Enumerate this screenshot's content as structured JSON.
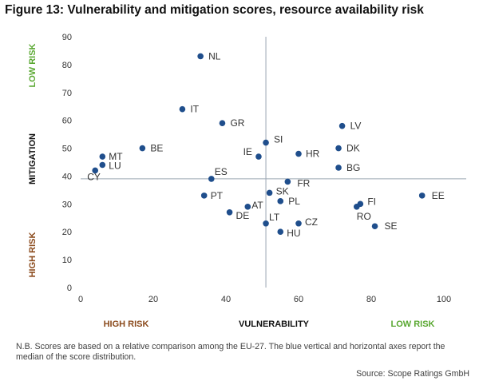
{
  "figure": {
    "title": "Figure 13: Vulnerability and mitigation scores, resource availability risk",
    "note": "N.B. Scores are based on a relative comparison among the EU-27. The blue vertical and horizontal axes report the median of the score distribution.",
    "source": "Source: Scope Ratings GmbH"
  },
  "chart_data": {
    "type": "scatter",
    "title": "Figure 13: Vulnerability and mitigation scores, resource availability risk",
    "xlabel": "VULNERABILITY",
    "ylabel": "MITIGATION",
    "xlim": [
      0,
      100
    ],
    "ylim": [
      0,
      90
    ],
    "x_ticks": [
      0,
      20,
      40,
      60,
      80,
      100
    ],
    "y_ticks": [
      0,
      10,
      20,
      30,
      40,
      50,
      60,
      70,
      80,
      90
    ],
    "median_x": 51,
    "median_y": 39,
    "x_annotations": {
      "left": "HIGH RISK",
      "right": "LOW RISK"
    },
    "y_annotations": {
      "top": "LOW RISK",
      "bottom": "HIGH RISK"
    },
    "colors": {
      "point": "#1f4e8c",
      "median_line": "#9aa6b2",
      "low_risk": "#5aa832",
      "high_risk": "#8b4a1c",
      "text": "#333333"
    },
    "points": [
      {
        "label": "NL",
        "x": 33,
        "y": 83
      },
      {
        "label": "IT",
        "x": 28,
        "y": 64
      },
      {
        "label": "GR",
        "x": 39,
        "y": 59
      },
      {
        "label": "LV",
        "x": 72,
        "y": 58
      },
      {
        "label": "SI",
        "x": 51,
        "y": 52
      },
      {
        "label": "DK",
        "x": 71,
        "y": 50
      },
      {
        "label": "BE",
        "x": 17,
        "y": 50
      },
      {
        "label": "HR",
        "x": 60,
        "y": 48
      },
      {
        "label": "MT",
        "x": 6,
        "y": 47
      },
      {
        "label": "IE",
        "x": 49,
        "y": 47
      },
      {
        "label": "LU",
        "x": 6,
        "y": 44
      },
      {
        "label": "BG",
        "x": 71,
        "y": 43
      },
      {
        "label": "CY",
        "x": 4,
        "y": 42
      },
      {
        "label": "ES",
        "x": 36,
        "y": 39
      },
      {
        "label": "FR",
        "x": 57,
        "y": 38
      },
      {
        "label": "SK",
        "x": 52,
        "y": 34
      },
      {
        "label": "PT",
        "x": 34,
        "y": 33
      },
      {
        "label": "EE",
        "x": 94,
        "y": 33
      },
      {
        "label": "PL",
        "x": 55,
        "y": 31
      },
      {
        "label": "FI",
        "x": 77,
        "y": 30
      },
      {
        "label": "AT",
        "x": 46,
        "y": 29
      },
      {
        "label": "RO",
        "x": 76,
        "y": 29
      },
      {
        "label": "DE",
        "x": 41,
        "y": 27
      },
      {
        "label": "LT",
        "x": 51,
        "y": 23
      },
      {
        "label": "CZ",
        "x": 60,
        "y": 23
      },
      {
        "label": "SE",
        "x": 81,
        "y": 22
      },
      {
        "label": "HU",
        "x": 55,
        "y": 20
      }
    ]
  }
}
